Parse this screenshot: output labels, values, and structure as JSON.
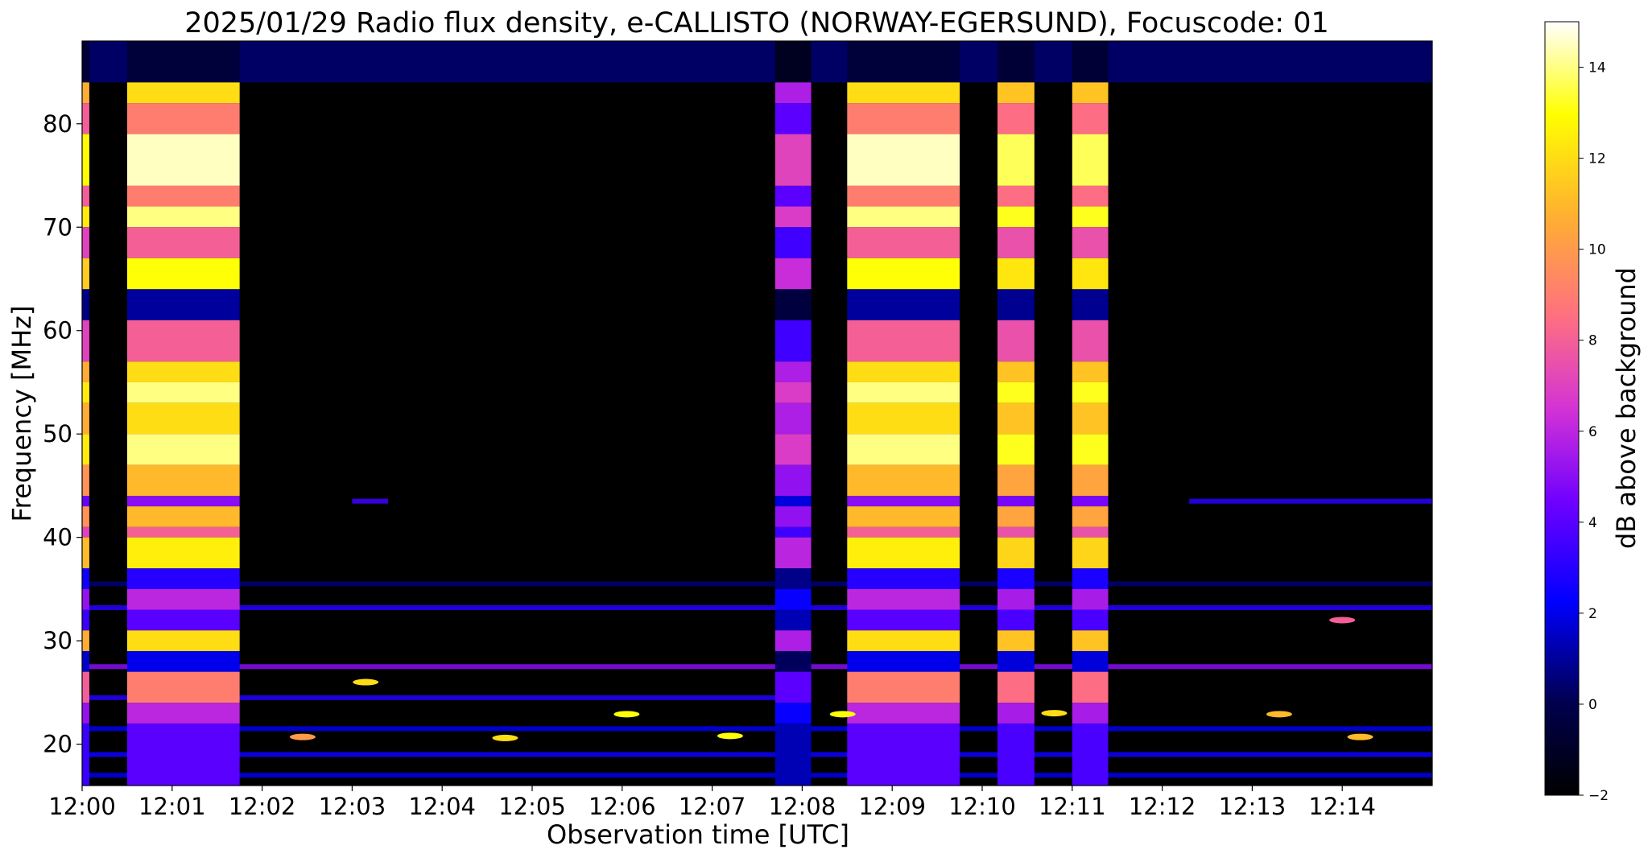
{
  "chart_data": {
    "type": "heatmap",
    "title": "2025/01/29  Radio flux density, e-CALLISTO (NORWAY-EGERSUND), Focuscode: 01",
    "xlabel": "Observation time [UTC]",
    "ylabel": "Frequency [MHz]",
    "colorbar_label": "dB above background",
    "x_unit": "minutes after 12:00 UTC",
    "xlim": [
      0,
      15
    ],
    "ylim": [
      16,
      88
    ],
    "x_ticks": [
      {
        "value": 0,
        "label": "12:00"
      },
      {
        "value": 1,
        "label": "12:01"
      },
      {
        "value": 2,
        "label": "12:02"
      },
      {
        "value": 3,
        "label": "12:03"
      },
      {
        "value": 4,
        "label": "12:04"
      },
      {
        "value": 5,
        "label": "12:05"
      },
      {
        "value": 6,
        "label": "12:06"
      },
      {
        "value": 7,
        "label": "12:07"
      },
      {
        "value": 8,
        "label": "12:08"
      },
      {
        "value": 9,
        "label": "12:09"
      },
      {
        "value": 10,
        "label": "12:10"
      },
      {
        "value": 11,
        "label": "12:11"
      },
      {
        "value": 12,
        "label": "12:12"
      },
      {
        "value": 13,
        "label": "12:13"
      },
      {
        "value": 14,
        "label": "12:14"
      }
    ],
    "y_ticks": [
      20,
      30,
      40,
      50,
      60,
      70,
      80
    ],
    "colorbar_ticks": [
      -2,
      0,
      2,
      4,
      6,
      8,
      10,
      12,
      14
    ],
    "colorbar_range": [
      -2,
      15
    ],
    "colormap": "gnuplot2",
    "bursts": [
      {
        "t_start": 0.0,
        "t_end": 0.08,
        "intensity": 0.9
      },
      {
        "t_start": 0.5,
        "t_end": 1.75,
        "intensity": 1.0
      },
      {
        "t_start": 7.7,
        "t_end": 8.1,
        "intensity": 0.55
      },
      {
        "t_start": 8.5,
        "t_end": 9.75,
        "intensity": 1.0
      },
      {
        "t_start": 10.17,
        "t_end": 10.58,
        "intensity": 0.95
      },
      {
        "t_start": 11.0,
        "t_end": 11.4,
        "intensity": 0.95
      }
    ],
    "spectral_profile": [
      {
        "f_min": 84,
        "f_max": 88,
        "level": -0.5
      },
      {
        "f_min": 82,
        "f_max": 84,
        "level": 12.0
      },
      {
        "f_min": 79,
        "f_max": 82,
        "level": 9.0
      },
      {
        "f_min": 74,
        "f_max": 79,
        "level": 14.5
      },
      {
        "f_min": 72,
        "f_max": 74,
        "level": 9.0
      },
      {
        "f_min": 70,
        "f_max": 72,
        "level": 14.0
      },
      {
        "f_min": 67,
        "f_max": 70,
        "level": 8.0
      },
      {
        "f_min": 64,
        "f_max": 67,
        "level": 13.0
      },
      {
        "f_min": 61,
        "f_max": 64,
        "level": 1.0
      },
      {
        "f_min": 57,
        "f_max": 61,
        "level": 8.0
      },
      {
        "f_min": 55,
        "f_max": 57,
        "level": 12.0
      },
      {
        "f_min": 53,
        "f_max": 55,
        "level": 14.0
      },
      {
        "f_min": 50,
        "f_max": 53,
        "level": 12.0
      },
      {
        "f_min": 47,
        "f_max": 50,
        "level": 14.0
      },
      {
        "f_min": 44,
        "f_max": 47,
        "level": 11.0
      },
      {
        "f_min": 43,
        "f_max": 44,
        "level": 5.0
      },
      {
        "f_min": 41,
        "f_max": 43,
        "level": 11.0
      },
      {
        "f_min": 40,
        "f_max": 41,
        "level": 8.0
      },
      {
        "f_min": 37,
        "f_max": 40,
        "level": 12.5
      },
      {
        "f_min": 35,
        "f_max": 37,
        "level": 3.0
      },
      {
        "f_min": 33,
        "f_max": 35,
        "level": 6.0
      },
      {
        "f_min": 31,
        "f_max": 33,
        "level": 4.0
      },
      {
        "f_min": 29,
        "f_max": 31,
        "level": 12.0
      },
      {
        "f_min": 27,
        "f_max": 29,
        "level": 2.0
      },
      {
        "f_min": 24,
        "f_max": 27,
        "level": 9.0
      },
      {
        "f_min": 22,
        "f_max": 24,
        "level": 6.0
      },
      {
        "f_min": 16,
        "f_max": 22,
        "level": 4.0
      }
    ],
    "quiet_lines": [
      {
        "f": 43.5,
        "t_start": 3.0,
        "t_end": 3.4,
        "level": 3.5
      },
      {
        "f": 43.5,
        "t_start": 12.3,
        "t_end": 15.0,
        "level": 3.0
      },
      {
        "f": 33.2,
        "t_start": 0.0,
        "t_end": 15.0,
        "level": 3.0
      },
      {
        "f": 35.5,
        "t_start": 0.0,
        "t_end": 15.0,
        "level": 0.5
      },
      {
        "f": 27.5,
        "t_start": 0.0,
        "t_end": 15.0,
        "level": 5.0
      },
      {
        "f": 24.5,
        "t_start": 0.0,
        "t_end": 7.7,
        "level": 3.0
      },
      {
        "f": 21.5,
        "t_start": 0.0,
        "t_end": 15.0,
        "level": 2.0
      },
      {
        "f": 19.0,
        "t_start": 0.0,
        "t_end": 15.0,
        "level": 2.5
      },
      {
        "f": 17.0,
        "t_start": 0.0,
        "t_end": 15.0,
        "level": 2.0
      }
    ],
    "spots": [
      {
        "t": 3.15,
        "f": 26.0,
        "level": 12.0
      },
      {
        "t": 2.45,
        "f": 20.7,
        "level": 10.0
      },
      {
        "t": 4.7,
        "f": 20.6,
        "level": 12.0
      },
      {
        "t": 6.05,
        "f": 22.9,
        "level": 13.0
      },
      {
        "t": 7.2,
        "f": 20.8,
        "level": 13.0
      },
      {
        "t": 8.45,
        "f": 22.9,
        "level": 13.0
      },
      {
        "t": 10.8,
        "f": 23.0,
        "level": 12.0
      },
      {
        "t": 13.3,
        "f": 22.9,
        "level": 11.0
      },
      {
        "t": 14.2,
        "f": 20.7,
        "level": 11.0
      },
      {
        "t": 14.0,
        "f": 32.0,
        "level": 8.0
      }
    ]
  }
}
